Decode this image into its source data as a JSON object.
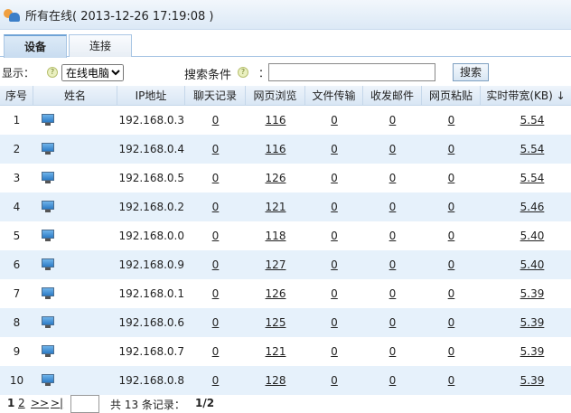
{
  "title": "所有在线( 2013-12-26 17:19:08 )",
  "tabs": [
    {
      "label": "设备",
      "active": true
    },
    {
      "label": "连接",
      "active": false
    }
  ],
  "filter": {
    "display_label": "显示：",
    "display_value": "在线电脑",
    "search_label": "搜索条件",
    "colon": "：",
    "search_value": "",
    "search_button": "搜索"
  },
  "columns": [
    "序号",
    "姓名",
    "IP地址",
    "聊天记录",
    "网页浏览",
    "文件传输",
    "收发邮件",
    "网页粘贴",
    "实时带宽(KB) ↓"
  ],
  "rows": [
    {
      "n": "1",
      "icon": "computer-icon",
      "ip": "192.168.0.3",
      "chat": "0",
      "web": "116",
      "file": "0",
      "mail": "0",
      "paste": "0",
      "bw": "5.54"
    },
    {
      "n": "2",
      "icon": "computer-icon",
      "ip": "192.168.0.4",
      "chat": "0",
      "web": "116",
      "file": "0",
      "mail": "0",
      "paste": "0",
      "bw": "5.54"
    },
    {
      "n": "3",
      "icon": "computer-icon",
      "ip": "192.168.0.5",
      "chat": "0",
      "web": "126",
      "file": "0",
      "mail": "0",
      "paste": "0",
      "bw": "5.54"
    },
    {
      "n": "4",
      "icon": "computer-icon",
      "ip": "192.168.0.2",
      "chat": "0",
      "web": "121",
      "file": "0",
      "mail": "0",
      "paste": "0",
      "bw": "5.46"
    },
    {
      "n": "5",
      "icon": "computer-icon",
      "ip": "192.168.0.0",
      "chat": "0",
      "web": "118",
      "file": "0",
      "mail": "0",
      "paste": "0",
      "bw": "5.40"
    },
    {
      "n": "6",
      "icon": "computer-icon",
      "ip": "192.168.0.9",
      "chat": "0",
      "web": "127",
      "file": "0",
      "mail": "0",
      "paste": "0",
      "bw": "5.40"
    },
    {
      "n": "7",
      "icon": "computer-icon",
      "ip": "192.168.0.1",
      "chat": "0",
      "web": "126",
      "file": "0",
      "mail": "0",
      "paste": "0",
      "bw": "5.39"
    },
    {
      "n": "8",
      "icon": "computer-icon",
      "ip": "192.168.0.6",
      "chat": "0",
      "web": "125",
      "file": "0",
      "mail": "0",
      "paste": "0",
      "bw": "5.39"
    },
    {
      "n": "9",
      "icon": "computer-icon",
      "ip": "192.168.0.7",
      "chat": "0",
      "web": "121",
      "file": "0",
      "mail": "0",
      "paste": "0",
      "bw": "5.39"
    },
    {
      "n": "10",
      "icon": "computer-icon",
      "ip": "192.168.0.8",
      "chat": "0",
      "web": "128",
      "file": "0",
      "mail": "0",
      "paste": "0",
      "bw": "5.39"
    }
  ],
  "pager": {
    "page1": "1",
    "page2": "2",
    "next": ">>",
    "last": ">|",
    "page_input": "",
    "total": "共 13 条记录：",
    "current": "1/2"
  },
  "colors": {
    "alt_row": "#e6f1fb",
    "header_bg": "#d9e6f4"
  }
}
